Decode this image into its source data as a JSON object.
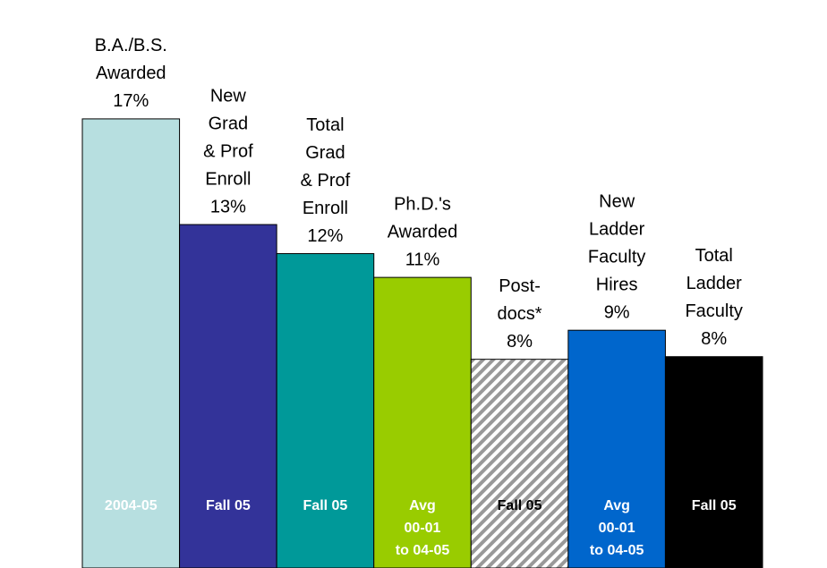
{
  "chart_data": {
    "type": "bar",
    "categories": [
      [
        "B.A./B.S.",
        "Awarded"
      ],
      [
        "New",
        "Grad",
        "& Prof",
        "Enroll"
      ],
      [
        "Total",
        "Grad",
        "& Prof",
        "Enroll"
      ],
      [
        "Ph.D.'s",
        "Awarded"
      ],
      [
        "Post-",
        "docs*"
      ],
      [
        "New",
        "Ladder",
        "Faculty",
        "Hires"
      ],
      [
        "Total",
        "Ladder",
        "Faculty"
      ]
    ],
    "values": [
      17,
      13,
      11.9,
      11,
      7.9,
      9,
      8
    ],
    "value_labels": [
      "17%",
      "13%",
      "12%",
      "11%",
      "8%",
      "9%",
      "8%"
    ],
    "colors": [
      "#b7dfe0",
      "#333399",
      "#009999",
      "#99cc00",
      "#999999",
      "#0066cc",
      "#000000"
    ],
    "hatched": [
      false,
      false,
      false,
      false,
      true,
      false,
      false
    ],
    "period_labels": [
      [
        "2004-05"
      ],
      [
        "Fall 05"
      ],
      [
        "Fall 05"
      ],
      [
        "Avg",
        "00-01",
        "to 04-05"
      ],
      [
        "Fall 05"
      ],
      [
        "Avg",
        "00-01",
        "to 04-05"
      ],
      [
        "Fall 05"
      ]
    ],
    "period_label_colors": [
      "#ffffff",
      "#ffffff",
      "#ffffff",
      "#ffffff",
      "#000000",
      "#ffffff",
      "#ffffff"
    ],
    "ylim": [
      0,
      21.5
    ]
  }
}
